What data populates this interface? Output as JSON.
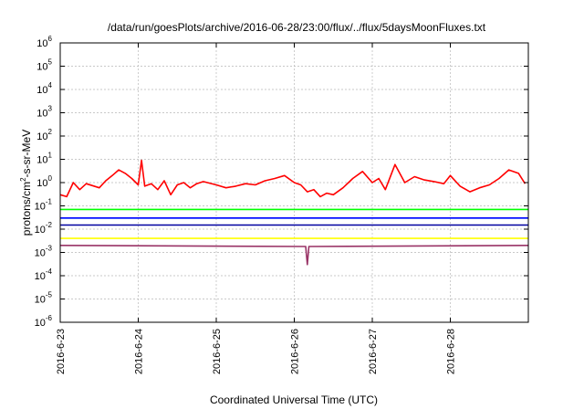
{
  "chart_data": {
    "type": "line",
    "title": "/data/run/goesPlots/archive/2016-06-28/23:00/flux/../flux/5daysMoonFluxes.txt",
    "xlabel": "Coordinated Universal Time (UTC)",
    "ylabel_prefix": "protons/cm",
    "ylabel_sup": "2",
    "ylabel_suffix": "-s-sr-MeV",
    "y_scale": "log",
    "ylim": [
      1e-06,
      1000000
    ],
    "xlim": [
      "2016-06-23T00:00",
      "2016-06-29T00:00"
    ],
    "grid": true,
    "x_ticks": [
      "2016-6-23",
      "2016-6-24",
      "2016-6-25",
      "2016-6-26",
      "2016-6-27",
      "2016-6-28"
    ],
    "y_ticks": [
      {
        "base": "10",
        "exp": "6"
      },
      {
        "base": "10",
        "exp": "5"
      },
      {
        "base": "10",
        "exp": "4"
      },
      {
        "base": "10",
        "exp": "3"
      },
      {
        "base": "10",
        "exp": "2"
      },
      {
        "base": "10",
        "exp": "1"
      },
      {
        "base": "10",
        "exp": "0"
      },
      {
        "base": "10",
        "exp": "-1"
      },
      {
        "base": "10",
        "exp": "-2"
      },
      {
        "base": "10",
        "exp": "-3"
      },
      {
        "base": "10",
        "exp": "-4"
      },
      {
        "base": "10",
        "exp": "-5"
      },
      {
        "base": "10",
        "exp": "-6"
      }
    ],
    "series": [
      {
        "color": "#ff0000",
        "x": [
          "2016-06-23T00:00",
          "2016-06-23T02:00",
          "2016-06-23T04:00",
          "2016-06-23T06:00",
          "2016-06-23T08:00",
          "2016-06-23T12:00",
          "2016-06-23T14:00",
          "2016-06-23T16:00",
          "2016-06-23T18:00",
          "2016-06-23T20:00",
          "2016-06-23T22:00",
          "2016-06-24T00:00",
          "2016-06-24T01:00",
          "2016-06-24T02:00",
          "2016-06-24T04:00",
          "2016-06-24T06:00",
          "2016-06-24T08:00",
          "2016-06-24T10:00",
          "2016-06-24T12:00",
          "2016-06-24T14:00",
          "2016-06-24T16:00",
          "2016-06-24T18:00",
          "2016-06-24T20:00",
          "2016-06-25T00:00",
          "2016-06-25T03:00",
          "2016-06-25T06:00",
          "2016-06-25T09:00",
          "2016-06-25T12:00",
          "2016-06-25T15:00",
          "2016-06-25T18:00",
          "2016-06-25T21:00",
          "2016-06-26T00:00",
          "2016-06-26T02:00",
          "2016-06-26T04:00",
          "2016-06-26T06:00",
          "2016-06-26T08:00",
          "2016-06-26T10:00",
          "2016-06-26T12:00",
          "2016-06-26T15:00",
          "2016-06-26T18:00",
          "2016-06-26T21:00",
          "2016-06-27T00:00",
          "2016-06-27T02:00",
          "2016-06-27T04:00",
          "2016-06-27T07:00",
          "2016-06-27T10:00",
          "2016-06-27T13:00",
          "2016-06-27T16:00",
          "2016-06-27T19:00",
          "2016-06-27T22:00",
          "2016-06-28T00:00",
          "2016-06-28T03:00",
          "2016-06-28T06:00",
          "2016-06-28T09:00",
          "2016-06-28T12:00",
          "2016-06-28T15:00",
          "2016-06-28T18:00",
          "2016-06-28T21:00",
          "2016-06-28T23:00"
        ],
        "y": [
          0.3,
          0.25,
          1.0,
          0.5,
          0.9,
          0.6,
          1.2,
          2.0,
          3.5,
          2.5,
          1.5,
          0.8,
          9.0,
          0.7,
          0.9,
          0.5,
          1.2,
          0.3,
          0.8,
          1.0,
          0.6,
          0.9,
          1.1,
          0.8,
          0.6,
          0.7,
          0.9,
          0.8,
          1.2,
          1.5,
          2.0,
          1.0,
          0.8,
          0.4,
          0.5,
          0.25,
          0.35,
          0.3,
          0.6,
          1.5,
          3.0,
          1.0,
          1.5,
          0.5,
          6.0,
          1.0,
          1.8,
          1.3,
          1.1,
          0.9,
          2.0,
          0.7,
          0.4,
          0.6,
          0.8,
          1.5,
          3.5,
          2.5,
          0.9
        ]
      },
      {
        "color": "#00ff00",
        "x": [
          "2016-06-23T00:00",
          "2016-06-29T00:00"
        ],
        "y": [
          0.07,
          0.07
        ]
      },
      {
        "color": "#00ffff",
        "x": [
          "2016-06-23T00:00",
          "2016-06-29T00:00"
        ],
        "y": [
          0.03,
          0.03
        ]
      },
      {
        "color": "#0000ff",
        "x": [
          "2016-06-23T00:00",
          "2016-06-29T00:00"
        ],
        "y": [
          0.03,
          0.03
        ]
      },
      {
        "color": "#0000a0",
        "x": [
          "2016-06-23T00:00",
          "2016-06-29T00:00"
        ],
        "y": [
          0.015,
          0.015
        ]
      },
      {
        "color": "#ffff00",
        "x": [
          "2016-06-23T00:00",
          "2016-06-29T00:00"
        ],
        "y": [
          0.004,
          0.004
        ]
      },
      {
        "color": "#993366",
        "x": [
          "2016-06-23T00:00",
          "2016-06-26T03:30",
          "2016-06-26T04:00",
          "2016-06-26T04:30",
          "2016-06-29T00:00"
        ],
        "y": [
          0.002,
          0.0018,
          0.0003,
          0.0018,
          0.002
        ]
      }
    ]
  }
}
